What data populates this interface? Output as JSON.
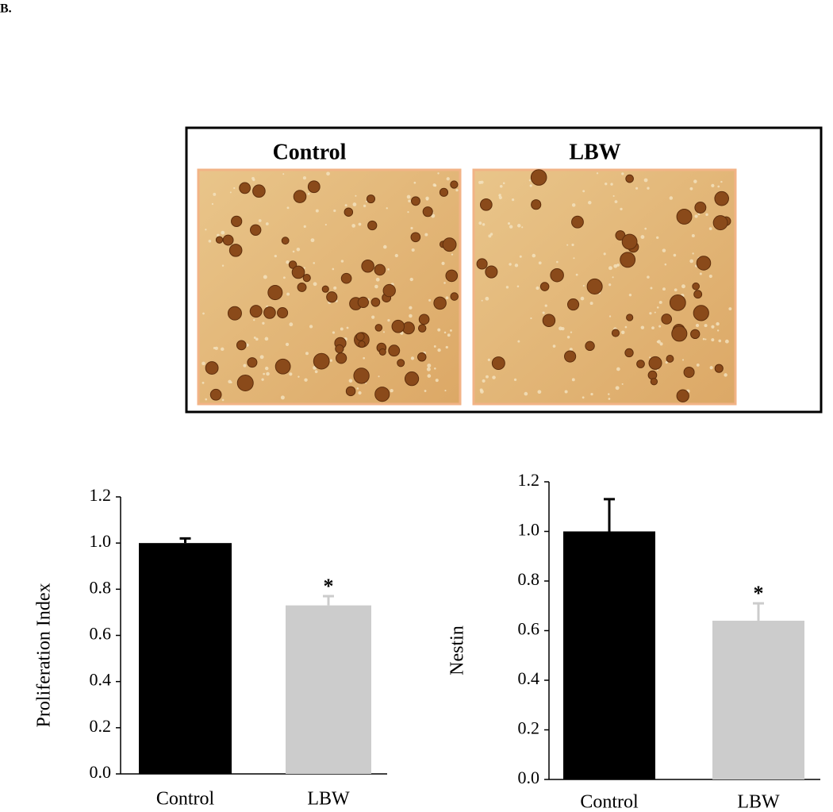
{
  "panel_label": "B.",
  "images": {
    "labels": [
      "Control",
      "LBW"
    ]
  },
  "chart_data": [
    {
      "type": "bar",
      "ylabel": "Proliferation Index",
      "categories": [
        "Control",
        "LBW"
      ],
      "values": [
        1.0,
        0.73
      ],
      "errors": [
        0.02,
        0.04
      ],
      "colors": [
        "#000000",
        "#cccccc"
      ],
      "value_annotations": [
        null,
        "*"
      ],
      "ylim": [
        0,
        1.2
      ],
      "yticks": [
        {
          "value": 0,
          "label": "0.0"
        },
        0.2,
        0.4,
        0.6,
        0.8,
        {
          "value": 1,
          "label": "1.0"
        },
        1.2
      ]
    },
    {
      "type": "bar",
      "ylabel": "Nestin",
      "categories": [
        "Control",
        "LBW"
      ],
      "values": [
        1.0,
        0.64
      ],
      "errors": [
        0.13,
        0.07
      ],
      "colors": [
        "#000000",
        "#cccccc"
      ],
      "value_annotations": [
        null,
        "*"
      ],
      "ylim": [
        0,
        1.2
      ],
      "yticks": [
        {
          "value": 0,
          "label": "0.0"
        },
        0.2,
        0.4,
        0.6,
        0.8,
        {
          "value": 1,
          "label": "1.0"
        },
        1.2
      ]
    }
  ]
}
